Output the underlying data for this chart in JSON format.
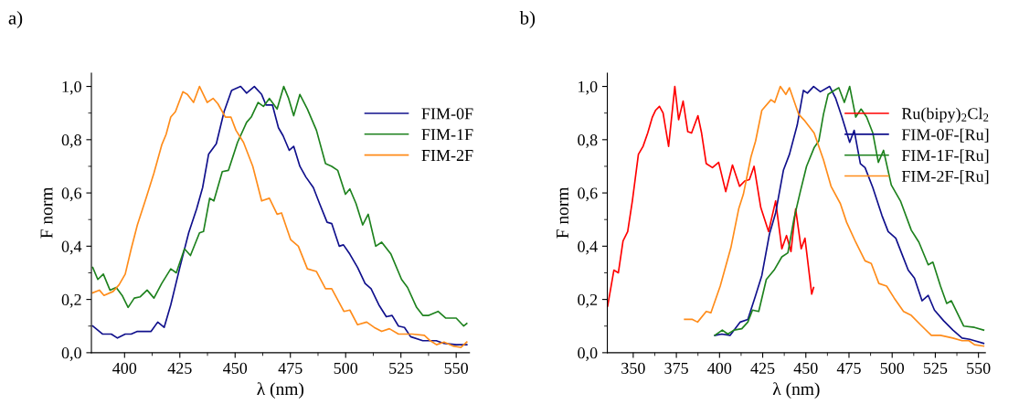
{
  "chart_data": [
    {
      "type": "line",
      "title": "a)",
      "xlabel": "λ (nm)",
      "ylabel": "F norm",
      "xlim": [
        385,
        556
      ],
      "ylim": [
        0,
        1.05
      ],
      "xticks": [
        400,
        425,
        450,
        475,
        500,
        525,
        550
      ],
      "yticks": [
        {
          "value": 0,
          "label": "0,0"
        },
        {
          "value": 0.2,
          "label": "0,2"
        },
        {
          "value": 0.4,
          "label": "0,4"
        },
        {
          "value": 0.6,
          "label": "0,6"
        },
        {
          "value": 0.8,
          "label": "0,8"
        },
        {
          "value": 1.0,
          "label": "1,0"
        }
      ],
      "grid": false,
      "legend": "top right",
      "line_style": "solid",
      "marker": "none",
      "series": [
        {
          "name": "FIM-0F",
          "color": "#10108c",
          "x": [
            385.6,
            390,
            394,
            396.8,
            400.3,
            403,
            405.8,
            409.2,
            412,
            415,
            417.9,
            420.9,
            425,
            429,
            432.6,
            435.3,
            438,
            441.5,
            445,
            448.4,
            452.5,
            455.2,
            458.7,
            462,
            464,
            466.9,
            469.6,
            471.7,
            474.5,
            476.5,
            479.3,
            482,
            485.4,
            488.2,
            491.6,
            493.7,
            497.1,
            499,
            501.9,
            505.4,
            508.8,
            511.5,
            515,
            518.4,
            521,
            523.9,
            526.6,
            529.4,
            534.9,
            541,
            544.5,
            550,
            554.8
          ],
          "values": [
            0.1,
            0.07,
            0.07,
            0.055,
            0.07,
            0.07,
            0.08,
            0.08,
            0.08,
            0.115,
            0.095,
            0.18,
            0.32,
            0.45,
            0.54,
            0.62,
            0.745,
            0.785,
            0.905,
            0.985,
            1.0,
            0.975,
            1.0,
            0.97,
            0.93,
            0.93,
            0.845,
            0.815,
            0.76,
            0.775,
            0.7,
            0.66,
            0.62,
            0.56,
            0.49,
            0.485,
            0.4,
            0.405,
            0.37,
            0.32,
            0.26,
            0.24,
            0.18,
            0.135,
            0.14,
            0.1,
            0.095,
            0.06,
            0.045,
            0.045,
            0.035,
            0.03,
            0.03
          ]
        },
        {
          "name": "FIM-1F",
          "color": "#1e821e",
          "x": [
            385.6,
            387.9,
            390.4,
            393.4,
            396.2,
            398.9,
            401.6,
            404.4,
            407.1,
            410.2,
            413.3,
            416.8,
            420.9,
            423.4,
            427.1,
            429.8,
            433.9,
            435.7,
            438.5,
            440.4,
            444.2,
            447,
            451.1,
            455.2,
            457.3,
            460.4,
            462.8,
            465.5,
            469,
            472,
            474.2,
            476.5,
            479.3,
            482.7,
            486.8,
            490.9,
            493.7,
            496.4,
            499.9,
            501.9,
            504.7,
            507.7,
            510.2,
            513.6,
            516.3,
            520.5,
            525.3,
            528,
            532.1,
            534.9,
            537.6,
            541.8,
            545.2,
            550,
            553.4,
            554.8
          ],
          "values": [
            0.32,
            0.275,
            0.295,
            0.235,
            0.245,
            0.215,
            0.17,
            0.205,
            0.21,
            0.235,
            0.205,
            0.26,
            0.315,
            0.3,
            0.39,
            0.365,
            0.45,
            0.455,
            0.58,
            0.57,
            0.68,
            0.685,
            0.79,
            0.865,
            0.885,
            0.94,
            0.925,
            0.955,
            0.915,
            1.0,
            0.955,
            0.89,
            0.97,
            0.915,
            0.835,
            0.71,
            0.7,
            0.685,
            0.595,
            0.615,
            0.56,
            0.48,
            0.52,
            0.4,
            0.415,
            0.37,
            0.275,
            0.245,
            0.17,
            0.14,
            0.14,
            0.155,
            0.13,
            0.13,
            0.1,
            0.11
          ]
        },
        {
          "name": "FIM-2F",
          "color": "#ff8c1a",
          "x": [
            385.6,
            388.6,
            390.7,
            394.8,
            397.5,
            400.3,
            403,
            405.8,
            409.9,
            413.3,
            416.8,
            418.8,
            420.9,
            423,
            426.4,
            428.4,
            431.2,
            433.9,
            437.4,
            440.1,
            442.2,
            445.6,
            448.1,
            450.4,
            453.8,
            458,
            462,
            465.5,
            469,
            471,
            475.1,
            478.6,
            482.7,
            486.8,
            490.9,
            493.7,
            499.2,
            501.9,
            505.4,
            509.5,
            512.9,
            516.3,
            519.8,
            523.9,
            530.1,
            535.6,
            538.3,
            541.1,
            544.5,
            548.6,
            552.1,
            554.8
          ],
          "values": [
            0.225,
            0.235,
            0.215,
            0.23,
            0.255,
            0.295,
            0.39,
            0.48,
            0.585,
            0.675,
            0.78,
            0.82,
            0.885,
            0.905,
            0.98,
            0.97,
            0.94,
            1.0,
            0.94,
            0.955,
            0.935,
            0.885,
            0.885,
            0.835,
            0.79,
            0.7,
            0.57,
            0.58,
            0.52,
            0.525,
            0.425,
            0.4,
            0.315,
            0.305,
            0.24,
            0.24,
            0.155,
            0.16,
            0.105,
            0.115,
            0.095,
            0.08,
            0.09,
            0.07,
            0.07,
            0.065,
            0.045,
            0.03,
            0.04,
            0.025,
            0.02,
            0.04
          ]
        }
      ]
    },
    {
      "type": "line",
      "title": "b)",
      "xlabel": "λ (nm)",
      "ylabel": "F norm",
      "xlim": [
        335,
        554
      ],
      "ylim": [
        0,
        1.05
      ],
      "xticks": [
        350,
        375,
        400,
        425,
        450,
        475,
        500,
        525,
        550
      ],
      "yticks": [
        {
          "value": 0,
          "label": "0,0"
        },
        {
          "value": 0.2,
          "label": "0,2"
        },
        {
          "value": 0.4,
          "label": "0,4"
        },
        {
          "value": 0.6,
          "label": "0,6"
        },
        {
          "value": 0.8,
          "label": "0,8"
        },
        {
          "value": 1.0,
          "label": "1,0"
        }
      ],
      "grid": false,
      "legend": "top right",
      "line_style": "solid",
      "marker": "none",
      "series": [
        {
          "name": "Ru(bipy)$_{2}$Cl$_{2}$",
          "color": "#ff0000",
          "x": [
            335.2,
            338.8,
            341.4,
            344.1,
            346.8,
            349.5,
            353,
            355.7,
            358.4,
            361.1,
            362.9,
            365.2,
            367.3,
            370.5,
            374.1,
            376.3,
            378.9,
            381.6,
            383.8,
            387.5,
            389.6,
            392.3,
            395.9,
            399.5,
            403.6,
            407.5,
            411.6,
            414.6,
            417.3,
            420,
            423.9,
            428.4,
            432.5,
            436.1,
            438.8,
            441.4,
            444.1,
            447.3,
            449.5,
            453.4,
            454.5
          ],
          "values": [
            0.175,
            0.31,
            0.3,
            0.42,
            0.455,
            0.57,
            0.745,
            0.775,
            0.825,
            0.885,
            0.91,
            0.925,
            0.9,
            0.775,
            1.0,
            0.875,
            0.945,
            0.83,
            0.825,
            0.89,
            0.825,
            0.71,
            0.695,
            0.715,
            0.605,
            0.705,
            0.625,
            0.645,
            0.65,
            0.7,
            0.545,
            0.455,
            0.57,
            0.39,
            0.44,
            0.38,
            0.54,
            0.39,
            0.43,
            0.22,
            0.245
          ]
        },
        {
          "name": "FIM-0F-[Ru]",
          "color": "#10108c",
          "x": [
            397.3,
            401.3,
            406.1,
            412,
            416.4,
            420.9,
            424.5,
            428.9,
            432.5,
            437,
            440.5,
            445,
            448.6,
            450.9,
            454.5,
            458.4,
            463.8,
            467.3,
            470.9,
            475.4,
            478,
            481.6,
            484.3,
            488.8,
            494.1,
            497.7,
            502.1,
            505.7,
            509.3,
            512.9,
            517.3,
            520.9,
            524.5,
            529.8,
            535.2,
            540.5,
            545,
            547.7,
            553
          ],
          "values": [
            0.065,
            0.07,
            0.065,
            0.115,
            0.125,
            0.215,
            0.29,
            0.445,
            0.525,
            0.685,
            0.745,
            0.855,
            0.985,
            0.975,
            1.0,
            0.98,
            1.0,
            0.955,
            0.885,
            0.79,
            0.835,
            0.71,
            0.695,
            0.62,
            0.515,
            0.455,
            0.43,
            0.37,
            0.31,
            0.28,
            0.195,
            0.215,
            0.16,
            0.12,
            0.085,
            0.055,
            0.05,
            0.045,
            0.035
          ]
        },
        {
          "name": "FIM-1F-[Ru]",
          "color": "#1e821e",
          "x": [
            397.3,
            401.6,
            404.8,
            408.4,
            412.9,
            416.4,
            419.1,
            422.7,
            427.1,
            431.6,
            436.1,
            439.6,
            443.2,
            446.8,
            450.4,
            454.8,
            457.5,
            460.2,
            462.9,
            466.4,
            469.1,
            472.3,
            475.4,
            478.9,
            482,
            485.2,
            488.8,
            492,
            495,
            499.5,
            504.8,
            511.1,
            515.5,
            520.9,
            523.6,
            528,
            531.6,
            534.3,
            541.4,
            547.7,
            553
          ],
          "values": [
            0.065,
            0.085,
            0.07,
            0.085,
            0.09,
            0.115,
            0.16,
            0.155,
            0.275,
            0.31,
            0.36,
            0.375,
            0.505,
            0.605,
            0.7,
            0.77,
            0.795,
            0.895,
            0.97,
            0.985,
            0.995,
            0.94,
            1.0,
            0.885,
            0.915,
            0.885,
            0.825,
            0.715,
            0.76,
            0.63,
            0.57,
            0.46,
            0.415,
            0.33,
            0.34,
            0.25,
            0.185,
            0.195,
            0.1,
            0.095,
            0.085
          ]
        },
        {
          "name": "FIM-2F-[Ru]",
          "color": "#ff8c1a",
          "x": [
            379.8,
            384.3,
            387.3,
            392.3,
            395,
            400.4,
            406.6,
            411.1,
            413.8,
            418.2,
            420.9,
            424.5,
            429.8,
            432,
            435.2,
            438.4,
            440.5,
            445.9,
            449.5,
            454.8,
            460.2,
            464.6,
            470,
            473.6,
            478.9,
            484.3,
            487.9,
            492.3,
            496.8,
            501.2,
            506.6,
            511.1,
            516.4,
            522.7,
            528,
            535.2,
            540.5,
            544.5,
            547.7,
            553
          ],
          "values": [
            0.125,
            0.125,
            0.115,
            0.155,
            0.15,
            0.25,
            0.395,
            0.54,
            0.595,
            0.735,
            0.795,
            0.91,
            0.95,
            0.94,
            1.0,
            0.97,
            0.995,
            0.895,
            0.87,
            0.825,
            0.725,
            0.625,
            0.56,
            0.49,
            0.415,
            0.345,
            0.335,
            0.26,
            0.25,
            0.205,
            0.155,
            0.14,
            0.105,
            0.065,
            0.065,
            0.055,
            0.045,
            0.045,
            0.03,
            0.025
          ]
        }
      ]
    }
  ]
}
